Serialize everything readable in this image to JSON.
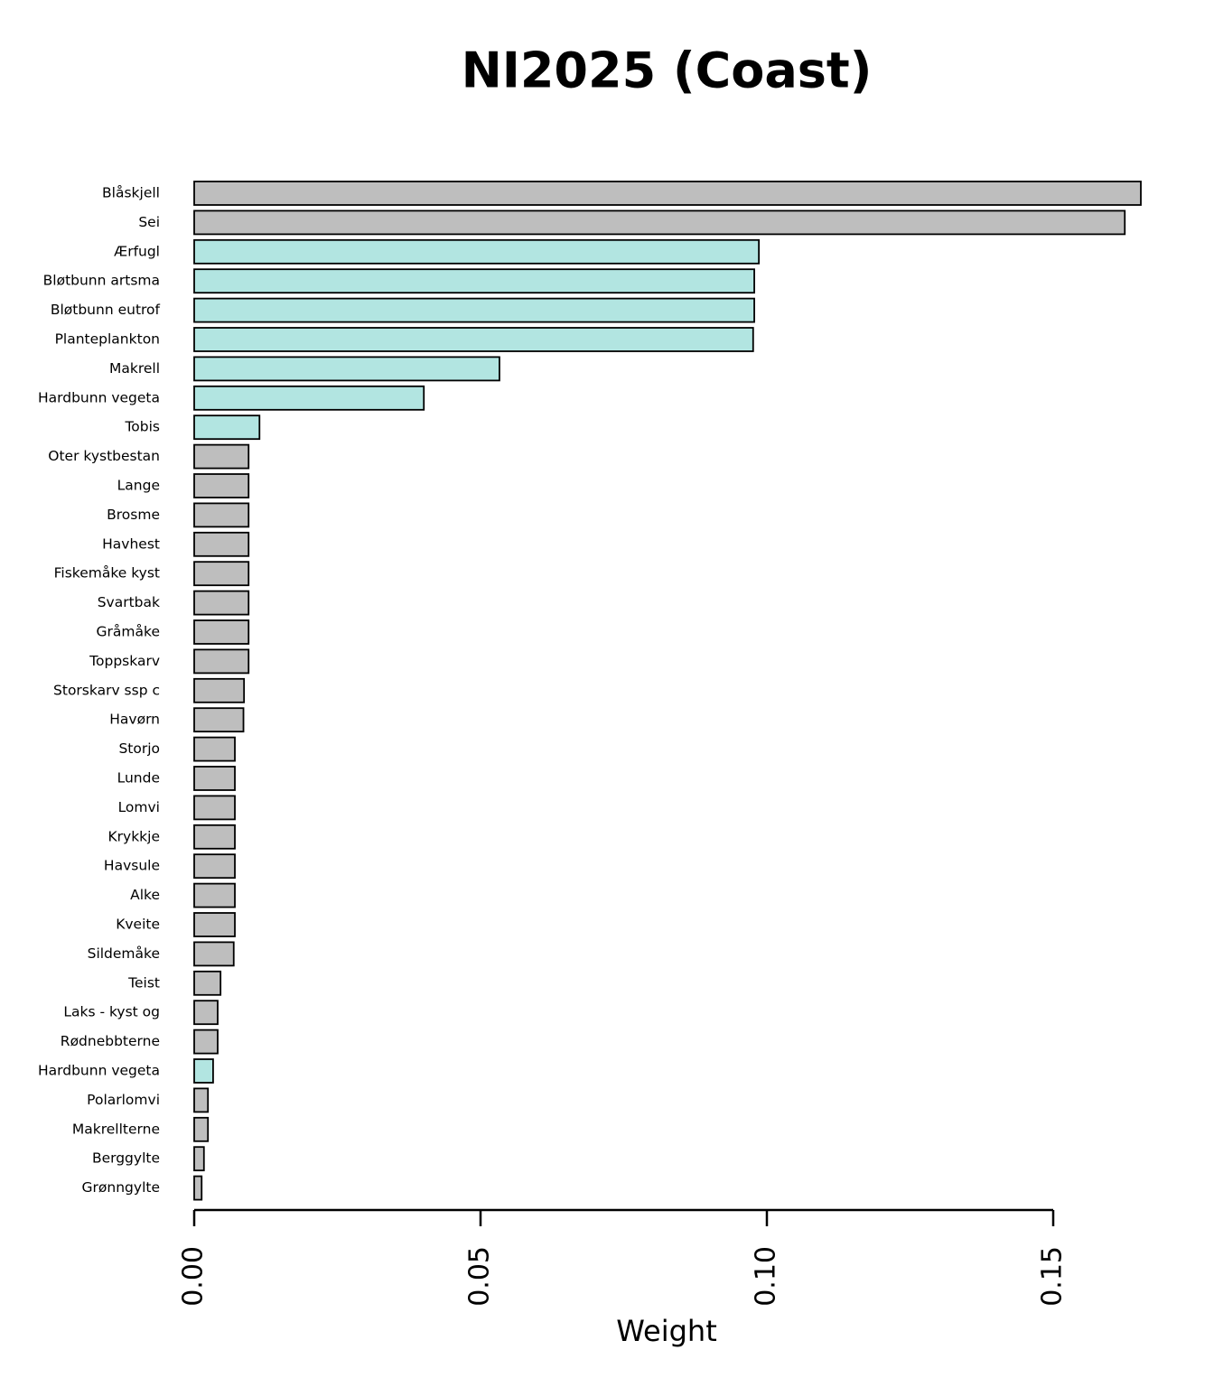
{
  "chart_data": {
    "type": "barh",
    "title": "NI2025 (Coast)",
    "xlabel": "Weight",
    "categories": [
      "Blåskjell",
      "Sei",
      "Ærfugl",
      "Bløtbunn artsma",
      "Bløtbunn eutrof",
      "Planteplankton",
      "Makrell",
      "Hardbunn vegeta",
      "Tobis",
      "Oter kystbestan",
      "Lange",
      "Brosme",
      "Havhest",
      "Fiskemåke kyst",
      "Svartbak",
      "Gråmåke",
      "Toppskarv",
      "Storskarv ssp c",
      "Havørn",
      "Storjo",
      "Lunde",
      "Lomvi",
      "Krykkje",
      "Havsule",
      "Alke",
      "Kveite",
      "Sildemåke",
      "Teist",
      "Laks - kyst og",
      "Rødnebbterne",
      "Hardbunn vegeta",
      "Polarlomvi",
      "Makrellterne",
      "Berggylte",
      "Grønngylte"
    ],
    "values": [
      0.1653,
      0.1625,
      0.0986,
      0.0978,
      0.0978,
      0.0976,
      0.0533,
      0.0401,
      0.0114,
      0.0095,
      0.0095,
      0.0095,
      0.0095,
      0.0095,
      0.0095,
      0.0095,
      0.0095,
      0.0087,
      0.0086,
      0.0071,
      0.0071,
      0.0071,
      0.0071,
      0.0071,
      0.0071,
      0.0071,
      0.0069,
      0.0046,
      0.0041,
      0.0041,
      0.0033,
      0.0024,
      0.0024,
      0.0017,
      0.0013
    ],
    "colors": [
      "#bebebe",
      "#bebebe",
      "#b2e5e1",
      "#b2e5e1",
      "#b2e5e1",
      "#b2e5e1",
      "#b2e5e1",
      "#b2e5e1",
      "#b2e5e1",
      "#bebebe",
      "#bebebe",
      "#bebebe",
      "#bebebe",
      "#bebebe",
      "#bebebe",
      "#bebebe",
      "#bebebe",
      "#bebebe",
      "#bebebe",
      "#bebebe",
      "#bebebe",
      "#bebebe",
      "#bebebe",
      "#bebebe",
      "#bebebe",
      "#bebebe",
      "#bebebe",
      "#bebebe",
      "#bebebe",
      "#bebebe",
      "#b2e5e1",
      "#bebebe",
      "#bebebe",
      "#bebebe",
      "#bebebe"
    ],
    "xlim": [
      0,
      0.15
    ],
    "xticks": [
      {
        "value": 0,
        "label": "0.00"
      },
      {
        "value": 0.05,
        "label": "0.05"
      },
      {
        "value": 0.1,
        "label": "0.10"
      },
      {
        "value": 0.15,
        "label": "0.15"
      }
    ]
  }
}
